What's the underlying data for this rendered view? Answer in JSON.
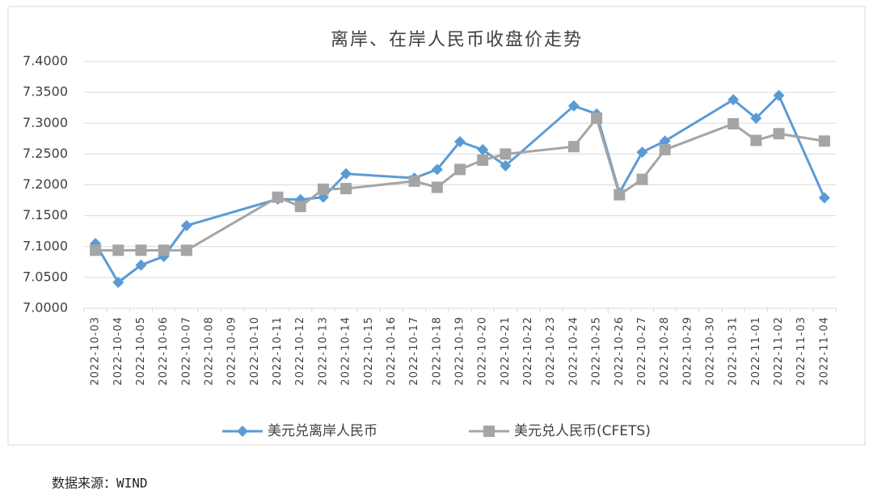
{
  "chart_data": {
    "type": "line",
    "title": "离岸、在岸人民币收盘价走势",
    "categories": [
      "2022-10-03",
      "2022-10-04",
      "2022-10-05",
      "2022-10-06",
      "2022-10-07",
      "2022-10-08",
      "2022-10-09",
      "2022-10-10",
      "2022-10-11",
      "2022-10-12",
      "2022-10-13",
      "2022-10-14",
      "2022-10-15",
      "2022-10-16",
      "2022-10-17",
      "2022-10-18",
      "2022-10-19",
      "2022-10-20",
      "2022-10-21",
      "2022-10-22",
      "2022-10-23",
      "2022-10-24",
      "2022-10-25",
      "2022-10-26",
      "2022-10-27",
      "2022-10-28",
      "2022-10-29",
      "2022-10-30",
      "2022-10-31",
      "2022-11-01",
      "2022-11-02",
      "2022-11-03",
      "2022-11-04"
    ],
    "series": [
      {
        "name": "美元兑离岸人民币",
        "color": "#5b9bd5",
        "marker": "diamond",
        "x": [
          "2022-10-03",
          "2022-10-04",
          "2022-10-05",
          "2022-10-06",
          "2022-10-07",
          "2022-10-11",
          "2022-10-12",
          "2022-10-13",
          "2022-10-14",
          "2022-10-17",
          "2022-10-18",
          "2022-10-19",
          "2022-10-20",
          "2022-10-21",
          "2022-10-24",
          "2022-10-25",
          "2022-10-26",
          "2022-10-27",
          "2022-10-28",
          "2022-10-31",
          "2022-11-01",
          "2022-11-02",
          "2022-11-04"
        ],
        "values": [
          7.105,
          7.042,
          7.07,
          7.084,
          7.134,
          7.177,
          7.176,
          7.18,
          7.218,
          7.211,
          7.225,
          7.27,
          7.257,
          7.231,
          7.328,
          7.315,
          7.187,
          7.253,
          7.271,
          7.338,
          7.308,
          7.345,
          7.179
        ]
      },
      {
        "name": "美元兑人民币(CFETS)",
        "color": "#a5a5a5",
        "marker": "square",
        "x": [
          "2022-10-03",
          "2022-10-04",
          "2022-10-05",
          "2022-10-06",
          "2022-10-07",
          "2022-10-11",
          "2022-10-12",
          "2022-10-13",
          "2022-10-14",
          "2022-10-17",
          "2022-10-18",
          "2022-10-19",
          "2022-10-20",
          "2022-10-21",
          "2022-10-24",
          "2022-10-25",
          "2022-10-26",
          "2022-10-27",
          "2022-10-28",
          "2022-10-31",
          "2022-11-01",
          "2022-11-02",
          "2022-11-04"
        ],
        "values": [
          7.094,
          7.094,
          7.094,
          7.094,
          7.094,
          7.18,
          7.165,
          7.193,
          7.194,
          7.206,
          7.196,
          7.225,
          7.24,
          7.25,
          7.262,
          7.308,
          7.184,
          7.209,
          7.257,
          7.299,
          7.272,
          7.283,
          7.271
        ]
      }
    ],
    "ylim": [
      7.0,
      7.4
    ],
    "yticks": [
      {
        "value": 7.0,
        "label": "7.0000"
      },
      {
        "value": 7.05,
        "label": "7.0500"
      },
      {
        "value": 7.1,
        "label": "7.1000"
      },
      {
        "value": 7.15,
        "label": "7.1500"
      },
      {
        "value": 7.2,
        "label": "7.2000"
      },
      {
        "value": 7.25,
        "label": "7.2500"
      },
      {
        "value": 7.3,
        "label": "7.3000"
      },
      {
        "value": 7.35,
        "label": "7.3500"
      },
      {
        "value": 7.4,
        "label": "7.4000"
      }
    ],
    "grid": true,
    "legend": "bottom",
    "source": "数据来源：WIND"
  }
}
